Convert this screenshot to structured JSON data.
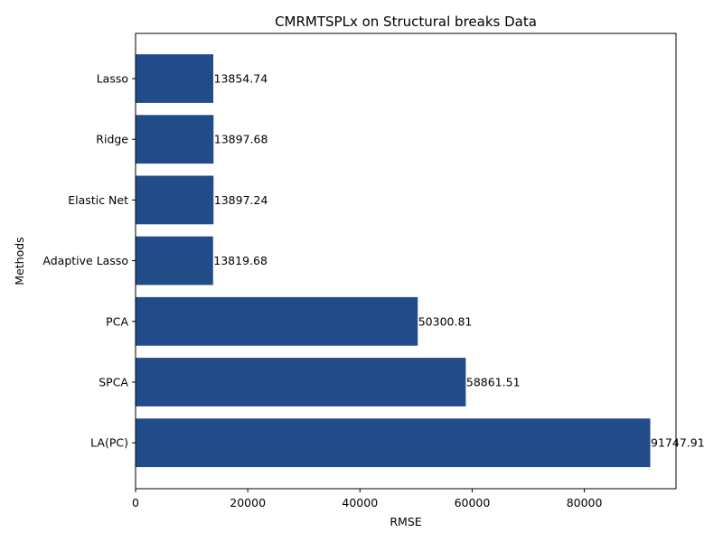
{
  "chart_data": {
    "type": "bar",
    "orientation": "horizontal",
    "title": "CMRMTSPLx on Structural breaks Data",
    "xlabel": "RMSE",
    "ylabel": "Methods",
    "categories": [
      "Lasso",
      "Ridge",
      "Elastic Net",
      "Adaptive Lasso",
      "PCA",
      "SPCA",
      "LA(PC)"
    ],
    "values": [
      13854.74,
      13897.68,
      13897.24,
      13819.68,
      50300.81,
      58861.51,
      91747.91
    ],
    "data_labels": [
      "13854.74",
      "13897.68",
      "13897.24",
      "13819.68",
      "50300.81",
      "58861.51",
      "91747.91"
    ],
    "xlim": [
      0,
      96335
    ],
    "xticks": [
      0,
      20000,
      40000,
      60000,
      80000
    ],
    "xtick_labels": [
      "0",
      "20000",
      "40000",
      "60000",
      "80000"
    ],
    "bar_color": "#224b8a",
    "grid": false,
    "legend": "none"
  }
}
